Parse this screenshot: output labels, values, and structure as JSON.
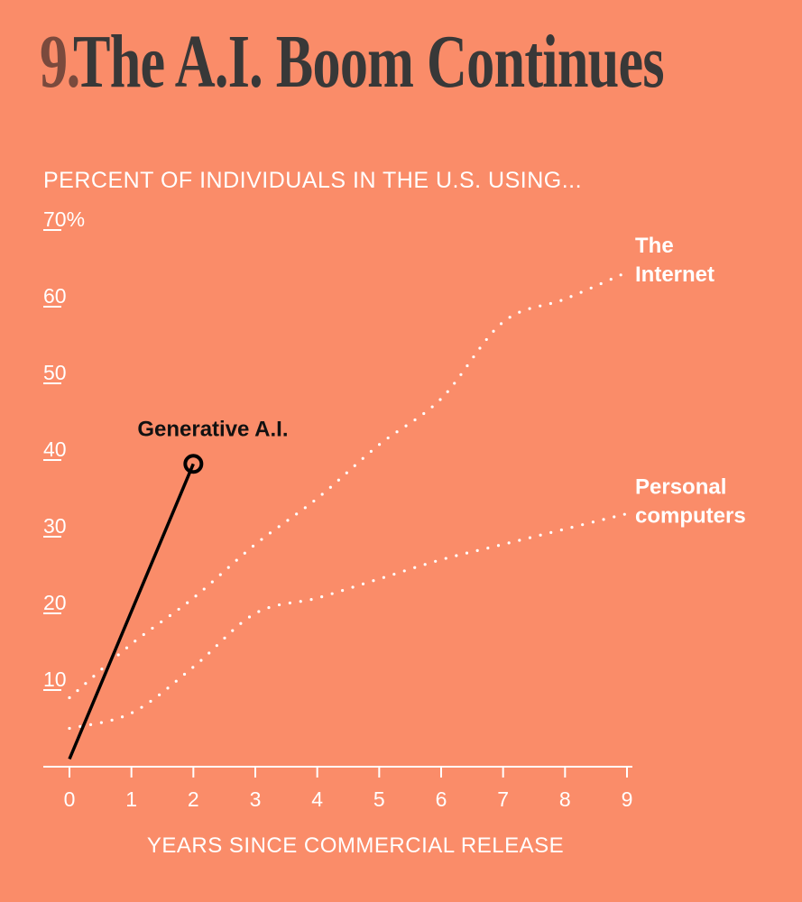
{
  "header": {
    "number": "9.",
    "title": "The A.I. Boom Continues"
  },
  "chart_data": {
    "type": "line",
    "subtitle": "PERCENT OF INDIVIDUALS IN THE U.S. USING...",
    "xlabel": "YEARS SINCE COMMERCIAL RELEASE",
    "ylabel": "",
    "xlim": [
      0,
      9
    ],
    "ylim": [
      0,
      70
    ],
    "x_ticks": [
      "0",
      "1",
      "2",
      "3",
      "4",
      "5",
      "6",
      "7",
      "8",
      "9"
    ],
    "y_ticks": [
      {
        "value": 10,
        "label": "10"
      },
      {
        "value": 20,
        "label": "20"
      },
      {
        "value": 30,
        "label": "30"
      },
      {
        "value": 40,
        "label": "40"
      },
      {
        "value": 50,
        "label": "50"
      },
      {
        "value": 60,
        "label": "60"
      },
      {
        "value": 70,
        "label": "70%"
      }
    ],
    "series": [
      {
        "name": "The Internet",
        "label_lines": [
          "The",
          "Internet"
        ],
        "style": "dotted",
        "color": "#FFFFFF",
        "x": [
          0,
          1,
          2,
          3,
          4,
          5,
          6,
          7,
          8,
          9
        ],
        "y": [
          9,
          16,
          22,
          29,
          35,
          42,
          48,
          58,
          61,
          64.5
        ]
      },
      {
        "name": "Personal computers",
        "label_lines": [
          "Personal",
          "computers"
        ],
        "style": "dotted",
        "color": "#FFFFFF",
        "x": [
          0,
          1,
          2,
          3,
          4,
          5,
          6,
          7,
          8,
          9
        ],
        "y": [
          5,
          7,
          13,
          20,
          22,
          24.5,
          27,
          29,
          31,
          33
        ]
      },
      {
        "name": "Generative A.I.",
        "label_lines": [
          "Generative A.I."
        ],
        "style": "solid",
        "color": "#000000",
        "x": [
          0,
          2
        ],
        "y": [
          1,
          39.5
        ]
      }
    ],
    "grid": false,
    "legend": "none (direct labels)"
  }
}
